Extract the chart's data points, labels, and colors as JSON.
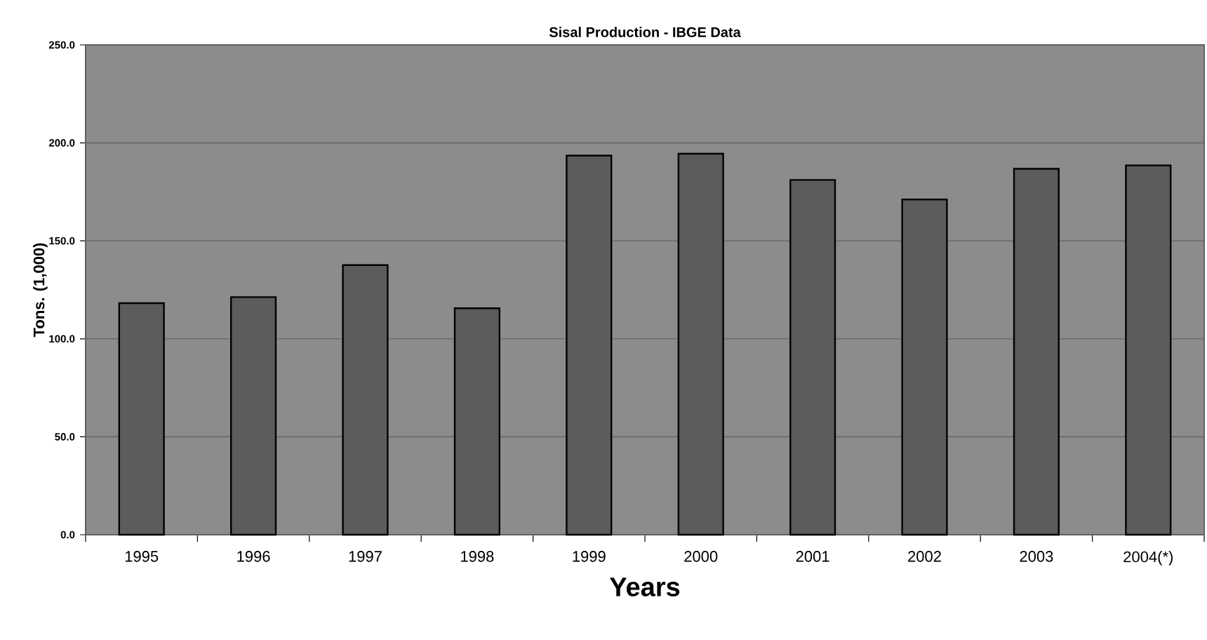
{
  "chart_data": {
    "type": "bar",
    "title": "Sisal Production - IBGE Data",
    "xlabel": "Years",
    "ylabel": "Tons. (1,000)",
    "categories": [
      "1995",
      "1996",
      "1997",
      "1998",
      "1999",
      "2000",
      "2001",
      "2002",
      "2003",
      "2004(*)"
    ],
    "values": [
      118.2,
      121.3,
      137.6,
      115.6,
      193.5,
      194.5,
      181.1,
      171.1,
      186.8,
      188.5
    ],
    "color": "#5c5c5c",
    "ylim": [
      0,
      250
    ],
    "yticks": [
      {
        "value": 0,
        "label": "0.0"
      },
      {
        "value": 50,
        "label": "50.0"
      },
      {
        "value": 100,
        "label": "100.0"
      },
      {
        "value": 150,
        "label": "150.0"
      },
      {
        "value": 200,
        "label": "200.0"
      },
      {
        "value": 250,
        "label": "250.0"
      }
    ],
    "grid": "y"
  }
}
